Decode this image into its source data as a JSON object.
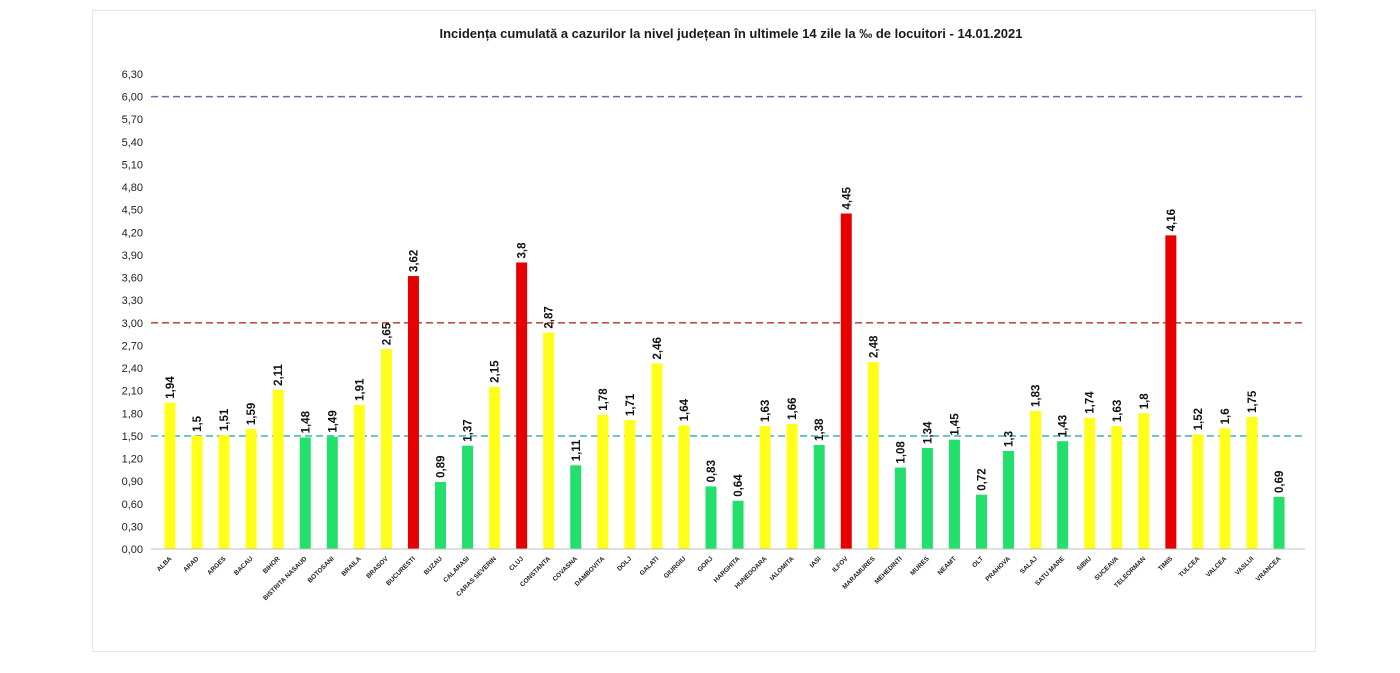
{
  "chart_data": {
    "type": "bar",
    "title": "Incidența cumulată a cazurilor la nivel județean în ultimele 14 zile   la ‰ de locuitori  - 14.01.2021",
    "xlabel": "",
    "ylabel": "",
    "ylim": [
      0,
      6.3
    ],
    "yticks": [
      "0,00",
      "0,30",
      "0,60",
      "0,90",
      "1,20",
      "1,50",
      "1,80",
      "2,10",
      "2,40",
      "2,70",
      "3,00",
      "3,30",
      "3,60",
      "3,90",
      "4,20",
      "4,50",
      "4,80",
      "5,10",
      "5,40",
      "5,70",
      "6,00",
      "6,30"
    ],
    "grid": false,
    "reference_lines": [
      {
        "value": 1.5,
        "color": "#4bb8c4"
      },
      {
        "value": 3.0,
        "color": "#c0504d"
      },
      {
        "value": 6.0,
        "color": "#7f5fa8"
      }
    ],
    "colors": {
      "green": "#22e06b",
      "yellow": "#ffff1a",
      "red": "#e60000"
    },
    "categories": [
      "ALBA",
      "ARAD",
      "ARGES",
      "BACAU",
      "BIHOR",
      "BISTRITA NASAUD",
      "BOTOSANI",
      "BRAILA",
      "BRASOV",
      "BUCURESTI",
      "BUZAU",
      "CALARASI",
      "CARAS SEVERIN",
      "CLUJ",
      "CONSTANTA",
      "COVASNA",
      "DAMBOVITA",
      "DOLJ",
      "GALATI",
      "GIURGIU",
      "GORJ",
      "HARGHITA",
      "HUNEDOARA",
      "IALOMITA",
      "IASI",
      "ILFOV",
      "MARAMURES",
      "MEHEDINTI",
      "MURES",
      "NEAMT",
      "OLT",
      "PRAHOVA",
      "SALAJ",
      "SATU MARE",
      "SIBIU",
      "SUCEAVA",
      "TELEORMAN",
      "TIMIS",
      "TULCEA",
      "VALCEA",
      "VASLUI",
      "VRANCEA"
    ],
    "values": [
      1.94,
      1.5,
      1.51,
      1.59,
      2.11,
      1.48,
      1.49,
      1.91,
      2.65,
      3.62,
      0.89,
      1.37,
      2.15,
      3.8,
      2.87,
      1.11,
      1.78,
      1.71,
      2.46,
      1.64,
      0.83,
      0.64,
      1.63,
      1.66,
      1.38,
      4.45,
      2.48,
      1.08,
      1.34,
      1.45,
      0.72,
      1.3,
      1.83,
      1.43,
      1.74,
      1.63,
      1.8,
      4.16,
      1.52,
      1.6,
      1.75,
      0.69
    ],
    "value_labels": [
      "1,94",
      "1,5",
      "1,51",
      "1,59",
      "2,11",
      "1,48",
      "1,49",
      "1,91",
      "2,65",
      "3,62",
      "0,89",
      "1,37",
      "2,15",
      "3,8",
      "2,87",
      "1,11",
      "1,78",
      "1,71",
      "2,46",
      "1,64",
      "0,83",
      "0,64",
      "1,63",
      "1,66",
      "1,38",
      "4,45",
      "2,48",
      "1,08",
      "1,34",
      "1,45",
      "0,72",
      "1,3",
      "1,83",
      "1,43",
      "1,74",
      "1,63",
      "1,8",
      "4,16",
      "1,52",
      "1,6",
      "1,75",
      "0,69"
    ],
    "bar_colors": [
      "yellow",
      "yellow",
      "yellow",
      "yellow",
      "yellow",
      "green",
      "green",
      "yellow",
      "yellow",
      "red",
      "green",
      "green",
      "yellow",
      "red",
      "yellow",
      "green",
      "yellow",
      "yellow",
      "yellow",
      "yellow",
      "green",
      "green",
      "yellow",
      "yellow",
      "green",
      "red",
      "yellow",
      "green",
      "green",
      "green",
      "green",
      "green",
      "yellow",
      "green",
      "yellow",
      "yellow",
      "yellow",
      "red",
      "yellow",
      "yellow",
      "yellow",
      "green"
    ]
  }
}
